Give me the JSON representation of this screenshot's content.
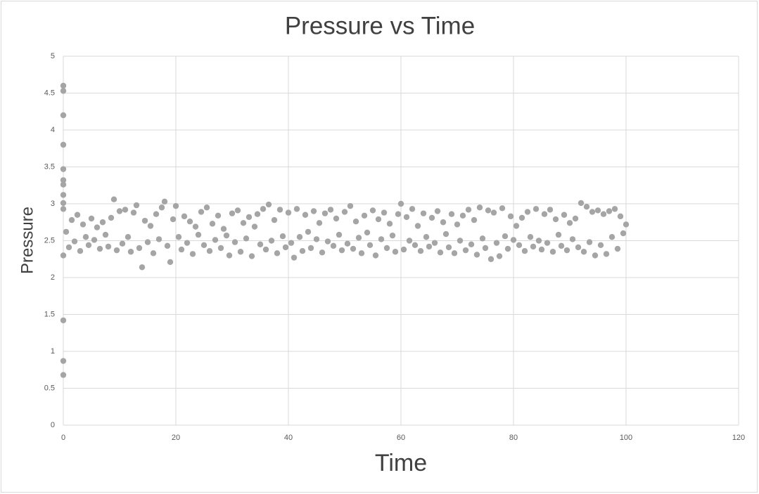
{
  "chart_data": {
    "type": "scatter",
    "title": "Pressure vs Time",
    "x_label": "Time",
    "y_label": "Pressure",
    "xlim": [
      0,
      120
    ],
    "xticks": [
      0,
      20,
      40,
      60,
      80,
      100,
      120
    ],
    "ylim": [
      0,
      5
    ],
    "yticks": [
      0,
      0.5,
      1,
      1.5,
      2,
      2.5,
      3,
      3.5,
      4,
      4.5,
      5
    ],
    "grid": true,
    "series": [
      {
        "name": "Pressure",
        "color": "#a5a5a5",
        "x": [
          0,
          0,
          0,
          0,
          0,
          0,
          0,
          0,
          0,
          0,
          0,
          0,
          0,
          0,
          0.5,
          1,
          1.5,
          2,
          2.5,
          3,
          3.5,
          4,
          4.5,
          5,
          5.5,
          6,
          6.5,
          7,
          7.5,
          8,
          8.5,
          9,
          9.5,
          10,
          10.5,
          11,
          11.5,
          12,
          12.5,
          13,
          13.5,
          14,
          14.5,
          15,
          15.5,
          16,
          16.5,
          17,
          17.5,
          18,
          18.5,
          19,
          19.5,
          20,
          20.5,
          21,
          21.5,
          22,
          22.5,
          23,
          23.5,
          24,
          24.5,
          25,
          25.5,
          26,
          26.5,
          27,
          27.5,
          28,
          28.5,
          29,
          29.5,
          30,
          30.5,
          31,
          31.5,
          32,
          32.5,
          33,
          33.5,
          34,
          34.5,
          35,
          35.5,
          36,
          36.5,
          37,
          37.5,
          38,
          38.5,
          39,
          39.5,
          40,
          40.5,
          41,
          41.5,
          42,
          42.5,
          43,
          43.5,
          44,
          44.5,
          45,
          45.5,
          46,
          46.5,
          47,
          47.5,
          48,
          48.5,
          49,
          49.5,
          50,
          50.5,
          51,
          51.5,
          52,
          52.5,
          53,
          53.5,
          54,
          54.5,
          55,
          55.5,
          56,
          56.5,
          57,
          57.5,
          58,
          58.5,
          59,
          59.5,
          60,
          60.5,
          61,
          61.5,
          62,
          62.5,
          63,
          63.5,
          64,
          64.5,
          65,
          65.5,
          66,
          66.5,
          67,
          67.5,
          68,
          68.5,
          69,
          69.5,
          70,
          70.5,
          71,
          71.5,
          72,
          72.5,
          73,
          73.5,
          74,
          74.5,
          75,
          75.5,
          76,
          76.5,
          77,
          77.5,
          78,
          78.5,
          79,
          79.5,
          80,
          80.5,
          81,
          81.5,
          82,
          82.5,
          83,
          83.5,
          84,
          84.5,
          85,
          85.5,
          86,
          86.5,
          87,
          87.5,
          88,
          88.5,
          89,
          89.5,
          90,
          90.5,
          91,
          91.5,
          92,
          92.5,
          93,
          93.5,
          94,
          94.5,
          95,
          95.5,
          96,
          96.5,
          97,
          97.5,
          98,
          98.5,
          99,
          99.5,
          100
        ],
        "values": [
          4.6,
          4.53,
          4.2,
          3.8,
          3.47,
          3.32,
          3.26,
          3.12,
          3.01,
          2.93,
          2.3,
          1.42,
          0.87,
          0.68,
          2.62,
          2.41,
          2.78,
          2.49,
          2.85,
          2.36,
          2.72,
          2.55,
          2.44,
          2.8,
          2.51,
          2.68,
          2.39,
          2.75,
          2.58,
          2.42,
          2.81,
          3.06,
          2.37,
          2.9,
          2.46,
          2.92,
          2.55,
          2.35,
          2.88,
          2.98,
          2.4,
          2.14,
          2.77,
          2.48,
          2.7,
          2.33,
          2.86,
          2.52,
          2.95,
          3.03,
          2.43,
          2.21,
          2.79,
          2.97,
          2.55,
          2.38,
          2.83,
          2.47,
          2.76,
          2.32,
          2.69,
          2.58,
          2.89,
          2.44,
          2.95,
          2.36,
          2.73,
          2.51,
          2.84,
          2.4,
          2.66,
          2.57,
          2.3,
          2.87,
          2.48,
          2.91,
          2.35,
          2.74,
          2.53,
          2.82,
          2.29,
          2.69,
          2.86,
          2.45,
          2.93,
          2.38,
          2.99,
          2.5,
          2.78,
          2.33,
          2.92,
          2.56,
          2.41,
          2.88,
          2.47,
          2.27,
          2.93,
          2.55,
          2.36,
          2.85,
          2.62,
          2.4,
          2.9,
          2.52,
          2.74,
          2.34,
          2.87,
          2.49,
          2.92,
          2.43,
          2.8,
          2.58,
          2.37,
          2.89,
          2.46,
          2.97,
          2.39,
          2.76,
          2.54,
          2.33,
          2.84,
          2.61,
          2.44,
          2.91,
          2.3,
          2.79,
          2.52,
          2.88,
          2.4,
          2.73,
          2.57,
          2.35,
          2.86,
          3.0,
          2.38,
          2.82,
          2.5,
          2.93,
          2.44,
          2.7,
          2.36,
          2.87,
          2.55,
          2.42,
          2.81,
          2.47,
          2.9,
          2.34,
          2.75,
          2.59,
          2.41,
          2.86,
          2.33,
          2.72,
          2.5,
          2.84,
          2.37,
          2.92,
          2.45,
          2.78,
          2.31,
          2.95,
          2.53,
          2.4,
          2.91,
          2.25,
          2.88,
          2.47,
          2.29,
          2.94,
          2.56,
          2.39,
          2.83,
          2.51,
          2.7,
          2.44,
          2.81,
          2.36,
          2.89,
          2.55,
          2.42,
          2.93,
          2.5,
          2.38,
          2.86,
          2.47,
          2.92,
          2.35,
          2.79,
          2.58,
          2.43,
          2.85,
          2.37,
          2.74,
          2.52,
          2.8,
          2.41,
          3.01,
          2.35,
          2.96,
          2.48,
          2.89,
          2.3,
          2.91,
          2.44,
          2.86,
          2.32,
          2.9,
          2.55,
          2.93,
          2.39,
          2.83,
          2.6,
          2.72
        ]
      }
    ]
  }
}
